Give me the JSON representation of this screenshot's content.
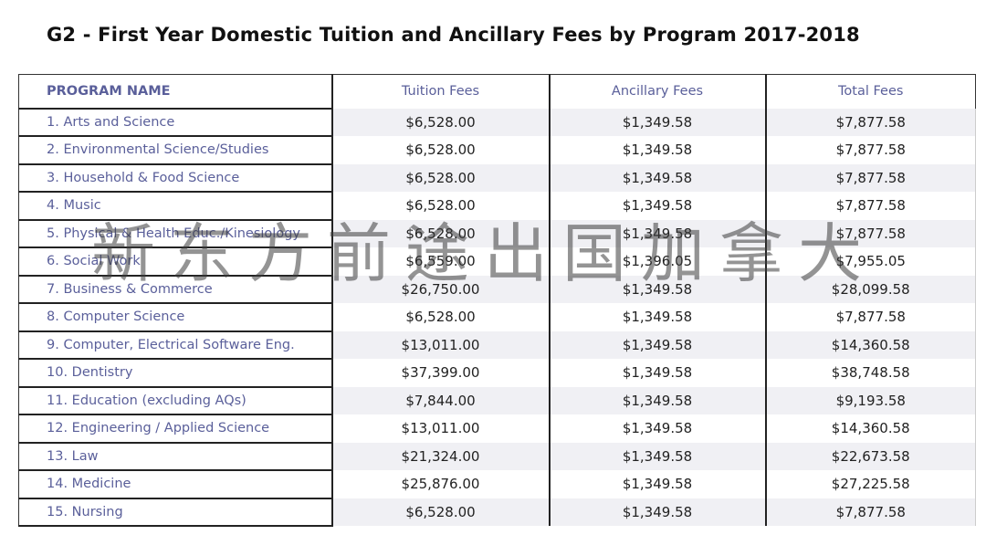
{
  "title": "G2 - First Year Domestic Tuition and Ancillary Fees by Program 2017-2018",
  "columns": {
    "program_name": "PROGRAM NAME",
    "tuition": "Tuition Fees",
    "ancillary": "Ancillary Fees",
    "total": "Total Fees"
  },
  "rows": [
    {
      "program": "1. Arts and Science",
      "tuition": "$6,528.00",
      "ancillary": "$1,349.58",
      "total": "$7,877.58"
    },
    {
      "program": "2. Environmental Science/Studies",
      "tuition": "$6,528.00",
      "ancillary": "$1,349.58",
      "total": "$7,877.58"
    },
    {
      "program": "3. Household & Food Science",
      "tuition": "$6,528.00",
      "ancillary": "$1,349.58",
      "total": "$7,877.58"
    },
    {
      "program": "4. Music",
      "tuition": "$6,528.00",
      "ancillary": "$1,349.58",
      "total": "$7,877.58"
    },
    {
      "program": "5. Physical & Health Educ./Kinesiology",
      "tuition": "$6,528.00",
      "ancillary": "$1,349.58",
      "total": "$7,877.58"
    },
    {
      "program": "6. Social Work",
      "tuition": "$6,559.00",
      "ancillary": "$1,396.05",
      "total": "$7,955.05"
    },
    {
      "program": "7. Business & Commerce",
      "tuition": "$26,750.00",
      "ancillary": "$1,349.58",
      "total": "$28,099.58"
    },
    {
      "program": "8. Computer Science",
      "tuition": "$6,528.00",
      "ancillary": "$1,349.58",
      "total": "$7,877.58"
    },
    {
      "program": "9. Computer, Electrical Software Eng.",
      "tuition": "$13,011.00",
      "ancillary": "$1,349.58",
      "total": "$14,360.58"
    },
    {
      "program": "10. Dentistry",
      "tuition": "$37,399.00",
      "ancillary": "$1,349.58",
      "total": "$38,748.58"
    },
    {
      "program": "11. Education (excluding AQs)",
      "tuition": "$7,844.00",
      "ancillary": "$1,349.58",
      "total": "$9,193.58"
    },
    {
      "program": "12. Engineering / Applied Science",
      "tuition": "$13,011.00",
      "ancillary": "$1,349.58",
      "total": "$14,360.58"
    },
    {
      "program": "13. Law",
      "tuition": "$21,324.00",
      "ancillary": "$1,349.58",
      "total": "$22,673.58"
    },
    {
      "program": "14. Medicine",
      "tuition": "$25,876.00",
      "ancillary": "$1,349.58",
      "total": "$27,225.58"
    },
    {
      "program": "15. Nursing",
      "tuition": "$6,528.00",
      "ancillary": "$1,349.58",
      "total": "$7,877.58"
    }
  ],
  "watermark": "新东方前途出国加拿大",
  "colors": {
    "program_text": "#5a5f9a",
    "stripe": "#f0f0f4",
    "title": "#111111"
  }
}
